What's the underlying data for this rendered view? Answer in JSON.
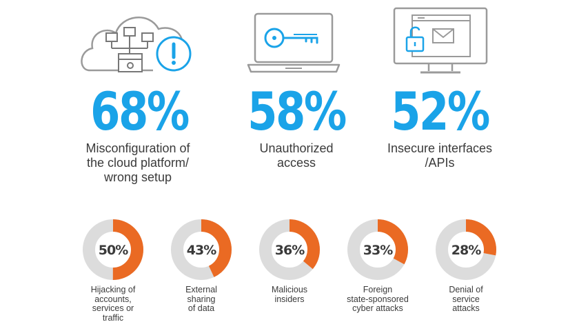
{
  "colors": {
    "accent_blue": "#1aa3e8",
    "donut_orange": "#ea6a23",
    "donut_track": "#dcdcdc",
    "icon_gray": "#9a9a9a",
    "text": "#3a3a3a"
  },
  "icons": [
    "cloud-network-warning-icon",
    "laptop-key-icon",
    "monitor-lock-mail-icon"
  ],
  "chart_data": [
    {
      "type": "table",
      "items": [
        {
          "value": "68%",
          "label": "Misconfiguration of\nthe cloud platform/\nwrong setup"
        },
        {
          "value": "58%",
          "label": "Unauthorized\naccess"
        },
        {
          "value": "52%",
          "label": "Insecure interfaces\n/APIs"
        }
      ]
    },
    {
      "type": "pie",
      "items": [
        {
          "value": 50,
          "display": "50%",
          "label": "Hijacking of\naccounts,\nservices or\ntraffic"
        },
        {
          "value": 43,
          "display": "43%",
          "label": "External\nsharing\nof data"
        },
        {
          "value": 36,
          "display": "36%",
          "label": "Malicious\ninsiders"
        },
        {
          "value": 33,
          "display": "33%",
          "label": "Foreign\nstate-sponsored\ncyber attacks"
        },
        {
          "value": 28,
          "display": "28%",
          "label": "Denial of\nservice\nattacks"
        }
      ]
    }
  ]
}
